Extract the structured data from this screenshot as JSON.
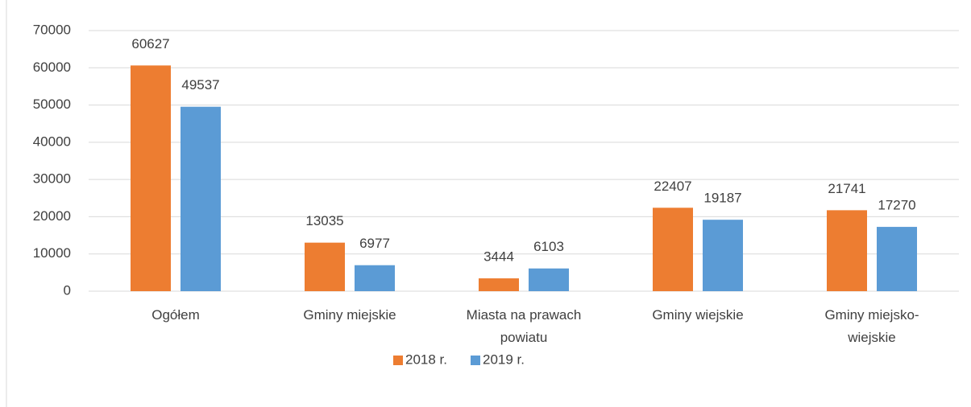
{
  "chart_data": {
    "type": "bar",
    "categories": [
      "Ogółem",
      "Gminy miejskie",
      "Miasta na prawach powiatu",
      "Gminy wiejskie",
      "Gminy miejsko-wiejskie"
    ],
    "series": [
      {
        "name": "2018 r.",
        "color": "#ed7d31",
        "values": [
          60627,
          13035,
          3444,
          22407,
          21741
        ]
      },
      {
        "name": "2019 r.",
        "color": "#5b9bd5",
        "values": [
          49537,
          6977,
          6103,
          19187,
          17270
        ]
      }
    ],
    "ylim": [
      0,
      70000
    ],
    "yticks": [
      0,
      10000,
      20000,
      30000,
      40000,
      50000,
      60000,
      70000
    ],
    "grid": true,
    "legend": "bottom"
  }
}
